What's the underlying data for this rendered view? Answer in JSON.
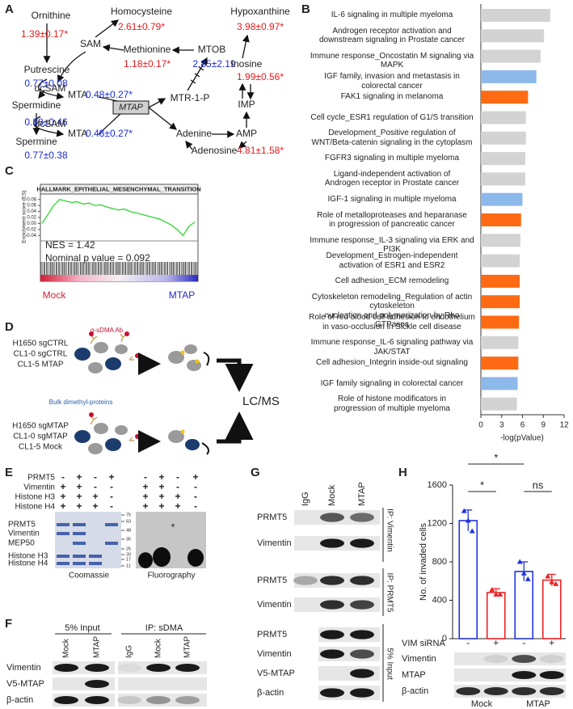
{
  "panel_labels": [
    "A",
    "B",
    "C",
    "D",
    "E",
    "F",
    "G",
    "H"
  ],
  "a": {
    "enzyme": "MTAP",
    "nodes": [
      {
        "label": "Ornithine",
        "value": "1.39±0.17*",
        "color": "#e8191b"
      },
      {
        "label": "Putrescine",
        "value": "0.77±0.08",
        "color": "#1a2bd8"
      },
      {
        "label": "Spermidine",
        "value": "0.88±0.46",
        "color": "#1a2bd8"
      },
      {
        "label": "Spermine",
        "value": "0.77±0.38",
        "color": "#1a2bd8"
      },
      {
        "label": "SAM"
      },
      {
        "label": "dcSAM"
      },
      {
        "label": "dcSAM"
      },
      {
        "label": "MTA",
        "value": "0.48±0.27*",
        "color": "#1a2bd8"
      },
      {
        "label": "MTA",
        "value": "0.48±0.27*",
        "color": "#1a2bd8"
      },
      {
        "label": "Homocysteine",
        "value": "2.61±0.79*",
        "color": "#e8191b"
      },
      {
        "label": "Methionine",
        "value": "1.18±0.17*",
        "color": "#e8191b"
      },
      {
        "label": "MTOB",
        "value": "2.85±2.19",
        "color": "#1a2bd8"
      },
      {
        "label": "Hypoxanthine",
        "value": "3.98±0.97*",
        "color": "#e8191b"
      },
      {
        "label": "Inosine",
        "value": "1.99±0.56*",
        "color": "#e8191b"
      },
      {
        "label": "MTR-1-P"
      },
      {
        "label": "IMP"
      },
      {
        "label": "Adenine"
      },
      {
        "label": "AMP"
      },
      {
        "label": "Adenosine",
        "value": "4.81±1.58*",
        "color": "#e8191b"
      }
    ]
  },
  "d": {
    "antibody": "α-sDMA Ab",
    "group1": [
      "H1650 sgCTRL",
      "CL1-0 sgCTRL",
      "CL1-5 MTAP"
    ],
    "bulk": "Bulk dimethyl-proteins",
    "method": "LC/MS",
    "group2": [
      "H1650 sgMTAP",
      "CL1-0 sgMTAP",
      "CL1-5 Mock"
    ]
  },
  "e": {
    "rows": [
      {
        "label": "PRMT5",
        "signs": [
          "-",
          "+",
          "-",
          "+"
        ]
      },
      {
        "label": "Vimentin",
        "signs": [
          "+",
          "+",
          "-",
          "-"
        ]
      },
      {
        "label": "Histone H3",
        "signs": [
          "+",
          "+",
          "+",
          "-"
        ]
      },
      {
        "label": "Histone H4",
        "signs": [
          "+",
          "+",
          "+",
          "-"
        ]
      }
    ],
    "band_labels": [
      "PRMT5",
      "Vimentin",
      "MEP50",
      "Histone H3",
      "Histone H4"
    ],
    "markers": [
      "75",
      "63",
      "48",
      "35",
      "25",
      "20",
      "17",
      "11"
    ],
    "star": "*",
    "stains": [
      "Coomassie",
      "Fluorography"
    ]
  },
  "f": {
    "groups": [
      "5% Input",
      "IP: sDMA"
    ],
    "lanes": [
      "Mock",
      "MTAP",
      "IgG",
      "Mock",
      "MTAP"
    ],
    "rows": [
      "Vimentin",
      "V5-MTAP",
      "β-actin"
    ]
  },
  "g": {
    "lanes": [
      "IgG",
      "Mock",
      "MTAP"
    ],
    "blocks": [
      {
        "name": "IP: Vimentin",
        "rows": [
          "PRMT5",
          "Vimentin"
        ]
      },
      {
        "name": "IP: PRMT5",
        "rows": [
          "PRMT5",
          "Vimentin"
        ]
      },
      {
        "name": "5% Input",
        "rows": [
          "PRMT5",
          "Vimentin",
          "V5-MTAP",
          "β-actin"
        ]
      }
    ]
  },
  "chart_data": [
    {
      "type": "bar",
      "orientation": "horizontal",
      "xlabel": "-log(pValue)",
      "categories": [
        "IL-6 signaling in multiple myeloma",
        "Androgen receptor activation and\ndownstream signaling in Prostate cancer",
        "Immune response_Oncostatin M signaling via MAPK",
        "IGF family, invasion and metastasis in colorectal cancer",
        "FAK1 signaling in melanoma",
        "Cell cycle_ESR1 regulation of G1/S transition",
        "Development_Positive regulation of\nWNT/Beta-catenin signaling in the cytoplasm",
        "FGFR3 signaling in multiple myeloma",
        "Ligand-independent activation of\nAndrogen receptor in Prostate cancer",
        "IGF-1 signaling in multiple myeloma",
        "Role of metalloproteases and heparanase\nin progression of pancreatic cancer",
        "Immune response_IL-3 signaling via ERK and PI3K",
        "Development_Estrogen-independent\nactivation of ESR1 and ESR2",
        "Cell adhesion_ECM remodeling",
        "Cytoskeleton remodeling_Regulation of actin cytoskeleton\nnucleation and polymerization by Rho GTPases",
        "Role of red blood cell adhesion to endothelium\nin vaso-occlusion in Sickle cell disease",
        "Immune response_IL-6 signaling pathway via JAK/STAT",
        "Cell adhesion_Integrin inside-out signaling",
        "IGF family signaling in colorectal cancer",
        "Role of histone modificators in\nprogression of multiple myeloma"
      ],
      "values": [
        10.0,
        9.1,
        8.6,
        8.0,
        6.8,
        6.5,
        6.5,
        6.4,
        6.4,
        6.0,
        5.8,
        5.7,
        5.6,
        5.6,
        5.6,
        5.5,
        5.4,
        5.4,
        5.3,
        5.2
      ],
      "colors": [
        "#d3d3d3",
        "#d3d3d3",
        "#d3d3d3",
        "#8db8ea",
        "#ff6a13",
        "#d3d3d3",
        "#d3d3d3",
        "#d3d3d3",
        "#d3d3d3",
        "#8db8ea",
        "#ff6a13",
        "#d3d3d3",
        "#d3d3d3",
        "#ff6a13",
        "#ff6a13",
        "#ff6a13",
        "#d3d3d3",
        "#ff6a13",
        "#8db8ea",
        "#d3d3d3"
      ],
      "xlim": [
        0,
        12
      ],
      "xticks": [
        0,
        3,
        6,
        9,
        12
      ]
    },
    {
      "type": "line",
      "title": "HALLMARK_EPITHELIAL_MESENCHYMAL_TRANSITION",
      "ylabel": "Enrichment score (ES)",
      "color": "#2fd62f",
      "values": [
        0,
        0.03,
        0.06,
        0.08,
        0.075,
        0.07,
        0.072,
        0.065,
        0.068,
        0.06,
        0.062,
        0.055,
        0.05,
        0.045,
        0.048,
        0.04,
        0.035,
        0.03,
        0.025,
        0.02,
        0.015,
        0.005,
        -0.005,
        -0.02,
        -0.04,
        -0.01,
        0.005
      ],
      "ylim": [
        -0.05,
        0.09
      ],
      "yticks": [
        0.08,
        0.06,
        0.04,
        0.02,
        {
          "value": 0,
          "label": "0.00"
        },
        -0.02,
        -0.04
      ],
      "annotations": [
        "NES = 1.42",
        "Nominal p value = 0.092"
      ],
      "group_labels": [
        "Mock",
        "MTAP"
      ]
    },
    {
      "type": "bar",
      "ylabel": "No. of invaded cells",
      "treatment_label": "VIM siRNA",
      "categories": [
        "-",
        "+",
        "-",
        "+"
      ],
      "values": [
        1230,
        480,
        700,
        610
      ],
      "errors": [
        110,
        40,
        100,
        60
      ],
      "points": [
        [
          1330,
          1230,
          1120
        ],
        [
          510,
          460,
          460
        ],
        [
          800,
          680,
          620
        ],
        [
          650,
          590,
          570
        ]
      ],
      "colors": [
        "#2233dd",
        "#ee2222",
        "#2233dd",
        "#ee2222"
      ],
      "ylim": [
        0,
        1600
      ],
      "yticks": [
        0,
        400,
        800,
        1200,
        1600
      ],
      "annotations": [
        "*",
        "*",
        "ns"
      ],
      "groups": [
        "Mock",
        "MTAP"
      ],
      "blot_rows": [
        "Vimentin",
        "MTAP",
        "β-actin"
      ]
    }
  ]
}
